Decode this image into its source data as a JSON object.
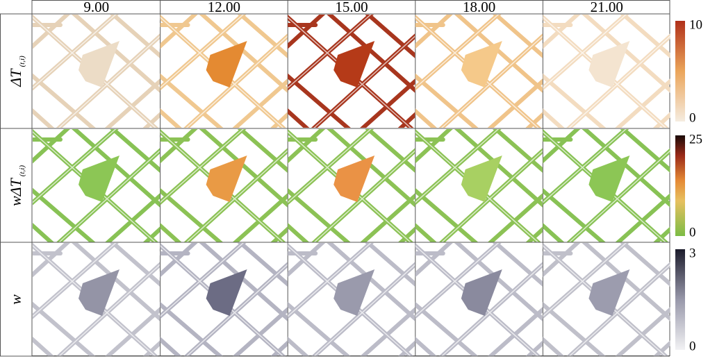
{
  "columns": [
    "9.00",
    "12.00",
    "15.00",
    "18.00",
    "21.00"
  ],
  "rows": [
    {
      "label": {
        "main": "ΔT",
        "sub": "(t,i)"
      },
      "colorbar": {
        "max": 10,
        "min": 0
      }
    },
    {
      "label": {
        "main": "wΔT",
        "sub": "(t,i)"
      },
      "colorbar": {
        "max": 25,
        "min": 0
      }
    },
    {
      "label": {
        "main": "w"
      },
      "colorbar": {
        "max": 3,
        "min": 0
      }
    }
  ]
}
